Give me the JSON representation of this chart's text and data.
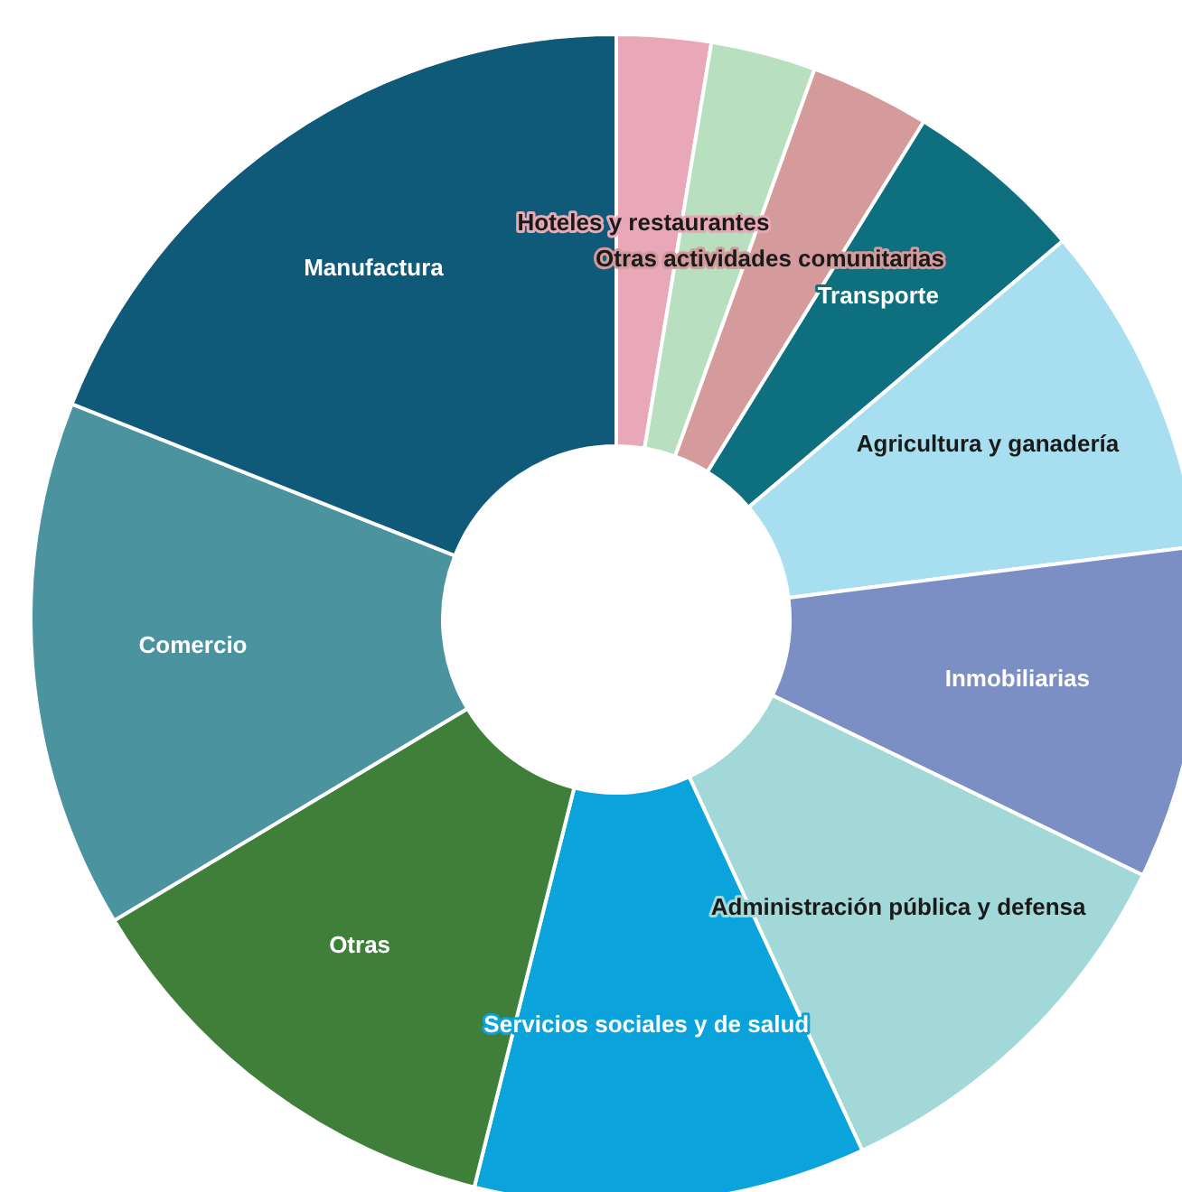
{
  "chart_data": {
    "type": "donut",
    "categories": [
      "Hoteles y restaurantes",
      null,
      "Otras actividades comunitarias",
      "Transporte",
      "Agricultura y ganadería",
      "Inmobiliarias",
      "Administración pública y defensa",
      "Servicios sociales y de salud",
      "Otras",
      "Comercio",
      "Manufactura"
    ],
    "values": [
      2.6,
      2.9,
      3.3,
      5.0,
      9.2,
      9.2,
      10.9,
      10.8,
      12.5,
      14.6,
      19.0
    ],
    "colors": [
      "#e8a8b8",
      "#b8e0c0",
      "#d49a9c",
      "#0e6f7e",
      "#a8dff0",
      "#7b8fc4",
      "#a2d8d8",
      "#0aa3dc",
      "#3f7f3a",
      "#4a939f",
      "#0f5a78"
    ],
    "legend": false
  }
}
